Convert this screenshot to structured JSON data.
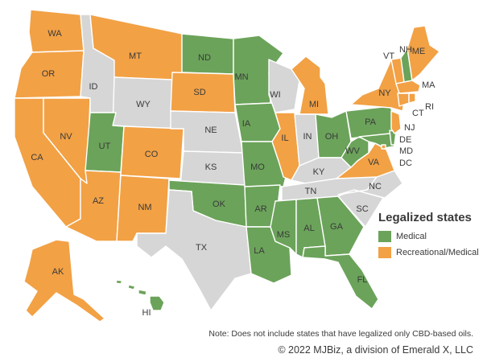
{
  "colors": {
    "medical": "#6ba35a",
    "recreational": "#f2a145",
    "none": "#d6d6d6"
  },
  "legend": {
    "title": "Legalized states",
    "items": [
      {
        "key": "medical",
        "label": "Medical"
      },
      {
        "key": "recreational",
        "label": "Recreational/Medical"
      }
    ]
  },
  "states": {
    "WA": "recreational",
    "OR": "recreational",
    "CA": "recreational",
    "NV": "recreational",
    "ID": "none",
    "MT": "recreational",
    "WY": "none",
    "UT": "medical",
    "AZ": "recreational",
    "CO": "recreational",
    "NM": "recreational",
    "ND": "medical",
    "SD": "recreational",
    "NE": "none",
    "KS": "none",
    "OK": "medical",
    "TX": "none",
    "MN": "medical",
    "IA": "medical",
    "MO": "medical",
    "AR": "medical",
    "LA": "medical",
    "WI": "none",
    "IL": "recreational",
    "MI": "recreational",
    "IN": "none",
    "OH": "medical",
    "KY": "none",
    "TN": "none",
    "MS": "medical",
    "AL": "medical",
    "GA": "medical",
    "FL": "medical",
    "SC": "none",
    "NC": "none",
    "VA": "recreational",
    "WV": "medical",
    "PA": "medical",
    "NY": "recreational",
    "VT": "recreational",
    "NH": "medical",
    "ME": "recreational",
    "MA": "recreational",
    "RI": "recreational",
    "CT": "recreational",
    "NJ": "recreational",
    "DE": "medical",
    "MD": "medical",
    "DC": "recreational",
    "AK": "recreational",
    "HI": "medical"
  },
  "note": "Note: Does not include states that have legalized only CBD-based oils.",
  "copyright": "© 2022 MJBiz, a division of Emerald X, LLC"
}
